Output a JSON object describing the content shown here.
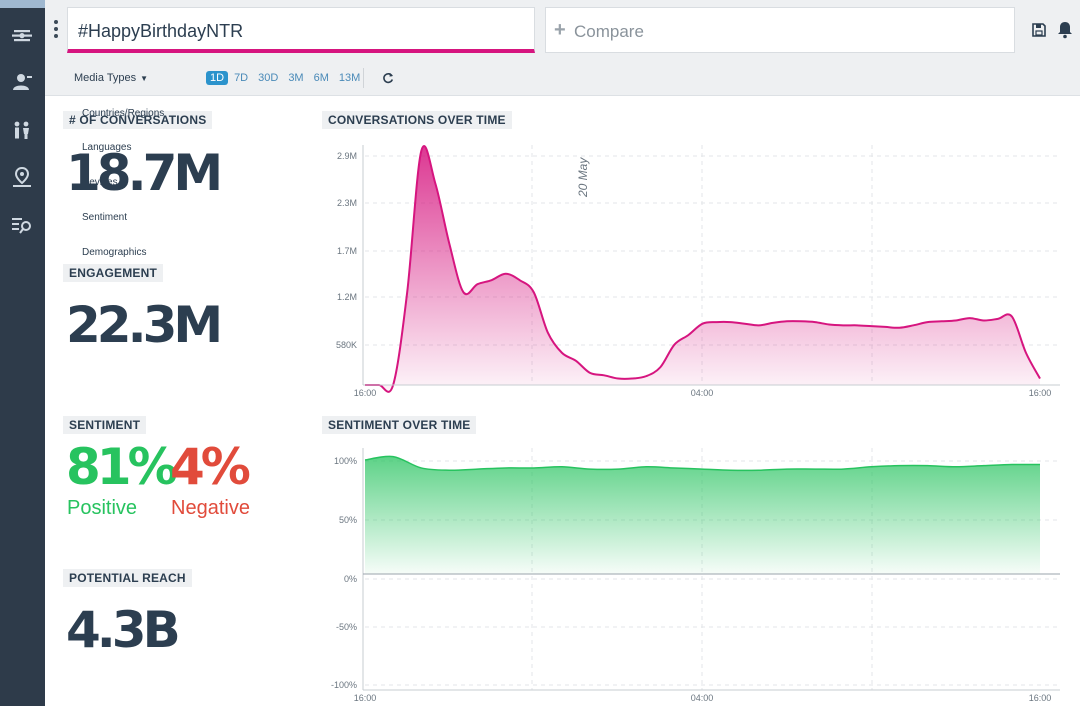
{
  "search": {
    "value": "#HappyBirthdayNTR"
  },
  "compare": {
    "plus": "+",
    "placeholder": "Compare"
  },
  "toolbar": {
    "media_types": "Media Types",
    "ranges": [
      "1D",
      "7D",
      "30D",
      "3M",
      "6M",
      "13M"
    ],
    "active_range": "1D"
  },
  "filter_menu": [
    "Countries/Regions",
    "Languages",
    "Devices",
    "Sentiment",
    "Demographics"
  ],
  "metrics": {
    "conversations": {
      "label": "# OF CONVERSATIONS",
      "value": "18.7M"
    },
    "engagement": {
      "label": "ENGAGEMENT",
      "value": "22.3M"
    },
    "sentiment": {
      "label": "SENTIMENT",
      "positive_value": "81%",
      "positive_label": "Positive",
      "negative_value": "4%",
      "negative_label": "Negative"
    },
    "reach": {
      "label": "POTENTIAL REACH",
      "value": "4.3B"
    }
  },
  "colors": {
    "accent": "#d6157f",
    "positive": "#27c35f",
    "negative": "#e14b3b",
    "sidebar": "#2e3b4a",
    "range_active": "#2b93cc"
  },
  "chart_data": [
    {
      "type": "area",
      "title": "CONVERSATIONS OVER TIME",
      "annotation": "20 May",
      "y_ticks": [
        "2.9M",
        "2.3M",
        "1.7M",
        "1.2M",
        "580K"
      ],
      "x_ticks": [
        "16:00",
        "04:00",
        "16:00"
      ],
      "ylim": [
        0,
        3100000
      ],
      "x": [
        0,
        0.5,
        1,
        1.5,
        2,
        2.5,
        3,
        3.5,
        4,
        4.5,
        5,
        5.5,
        6,
        6.5,
        7,
        7.5,
        8,
        8.5,
        9,
        9.5,
        10,
        10.5,
        11,
        11.5,
        12,
        12.5,
        13,
        13.5,
        14,
        14.5,
        15,
        15.5,
        16,
        16.5,
        17,
        17.5,
        18,
        18.5,
        19,
        19.5,
        20,
        20.5,
        21,
        21.5,
        22,
        22.5,
        23,
        23.5,
        24
      ],
      "values": [
        0,
        0,
        0,
        1150000,
        2900000,
        2500000,
        1750000,
        1150000,
        1250000,
        1300000,
        1380000,
        1300000,
        1150000,
        650000,
        400000,
        300000,
        150000,
        120000,
        80000,
        80000,
        110000,
        220000,
        500000,
        620000,
        760000,
        780000,
        780000,
        760000,
        740000,
        770000,
        790000,
        790000,
        780000,
        750000,
        740000,
        740000,
        730000,
        720000,
        710000,
        740000,
        780000,
        790000,
        800000,
        830000,
        800000,
        820000,
        850000,
        400000,
        80000
      ],
      "color": "#d6157f"
    },
    {
      "type": "area",
      "title": "SENTIMENT OVER TIME",
      "y_ticks": [
        "100%",
        "50%",
        "0%",
        "-50%",
        "-100%"
      ],
      "x_ticks": [
        "16:00",
        "04:00",
        "16:00"
      ],
      "ylim": [
        -100,
        100
      ],
      "x": [
        0,
        1,
        2,
        3,
        4,
        5,
        6,
        7,
        8,
        9,
        10,
        11,
        12,
        13,
        14,
        15,
        16,
        17,
        18,
        19,
        20,
        21,
        22,
        23,
        24
      ],
      "values": [
        100,
        103,
        93,
        91,
        92,
        93,
        93,
        94,
        92,
        92,
        94,
        93,
        92,
        91,
        91,
        92,
        92,
        92,
        94,
        95,
        95,
        94,
        95,
        96,
        96
      ],
      "color": "#27c35f"
    }
  ]
}
